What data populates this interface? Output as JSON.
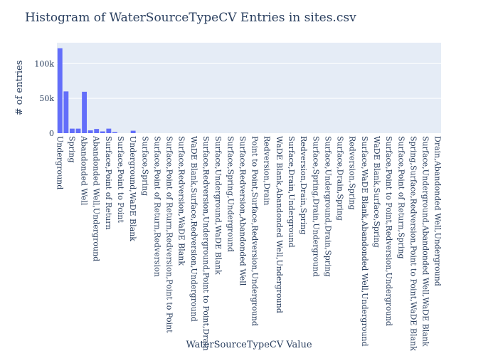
{
  "chart_data": {
    "type": "bar",
    "title": "Histogram of WaterSourceTypeCV Entries in sites.csv",
    "xlabel": "WaterSourceTypeCV Value",
    "ylabel": "# of entries",
    "ylim": [
      0,
      130000
    ],
    "yticks": [
      0,
      50000,
      100000
    ],
    "ytick_labels": [
      "0",
      "50k",
      "100k"
    ],
    "grid": true,
    "legend": "none",
    "bar_color": "#636efa",
    "plot_bgcolor": "#e5ecf6",
    "gridcolor": "#ffffff",
    "categories": [
      "Underground",
      "",
      "Spring",
      "",
      "Abandonded Well",
      "",
      "Abandonded Well,Underground",
      "",
      "Surface,Point of Return",
      "",
      "Surface,Point to Point",
      "",
      "Underground,WaDE Blank",
      "",
      "Surface,Spring",
      "",
      "Surface,Point of Return,Redversion",
      "",
      "Surface,Point of Return,Redversion,Point to Point",
      "",
      "Surface,Redversion,WaDE Blank",
      "",
      "WaDE Blank,Surface,Redversion,Underground",
      "",
      "Surface,Redversion,Underground,Point to Point,Drain",
      "",
      "Surface,Underground,WaDE Blank",
      "",
      "Surface,Spring,Underground",
      "",
      "Surface,Redversion,Abandonded Well",
      "",
      "Point to Point,Surface,Redversion,Underground",
      "",
      "Redversion,Drain",
      "",
      "WaDE Blank,Abandonded Well,Underground",
      "",
      "Surface,Drain,Underground",
      "",
      "Redversion,Drain,Spring",
      "",
      "Surface,Spring,Drain,Underground",
      "",
      "Surface,Underground,Drain,Spring",
      "",
      "Surface,Drain,Spring",
      "",
      "Redversion,Spring",
      "",
      "Surface,WaDE Blank,Abandonded Well,Underground",
      "",
      "WaDE Blank,Surface,Spring",
      "",
      "Surface,Point to Point,Redversion,Underground",
      "",
      "Surface,Point of Return,Spring",
      "",
      "Spring,Surface,Redversion,Point to Point,WaDE Blank",
      "",
      "Surface,Underground,Abandonded Well,WaDE Blank",
      "",
      "Drain,Abandonded Well,Underground"
    ],
    "values": [
      122000,
      60000,
      6500,
      6500,
      59500,
      4000,
      6000,
      2500,
      6500,
      1500,
      0,
      0,
      3500,
      0,
      0,
      0,
      0,
      0,
      0,
      0,
      0,
      0,
      0,
      0,
      0,
      0,
      0,
      0,
      0,
      0,
      0,
      0,
      0,
      0,
      0,
      0,
      0,
      0,
      0,
      0,
      0,
      0,
      0,
      0,
      0,
      0,
      0,
      0,
      0,
      0,
      0,
      0,
      0,
      0,
      0,
      0,
      0,
      0,
      0,
      0,
      0,
      0,
      0
    ]
  }
}
